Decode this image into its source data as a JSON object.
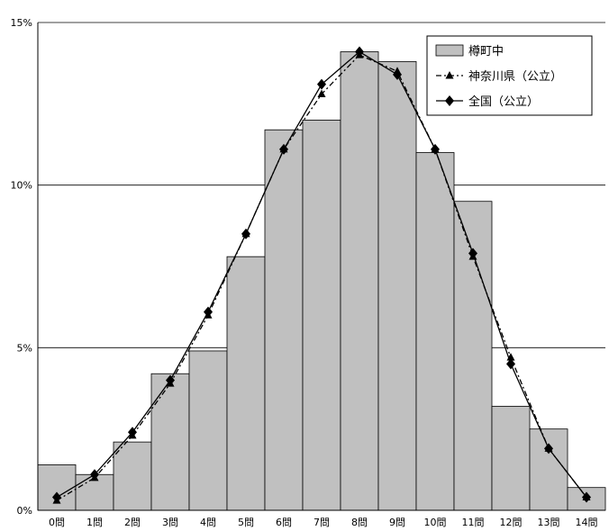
{
  "chart_data": {
    "type": "bar",
    "categories": [
      "0問",
      "1問",
      "2問",
      "3問",
      "4問",
      "5問",
      "6問",
      "7問",
      "8問",
      "9問",
      "10問",
      "11問",
      "12問",
      "13問",
      "14問"
    ],
    "ylim": [
      0,
      15
    ],
    "y_ticks": [
      "0%",
      "5%",
      "10%",
      "15%"
    ],
    "grid": true,
    "legend_position": "top-right",
    "series": [
      {
        "name": "樽町中",
        "kind": "bar",
        "values": [
          1.4,
          1.1,
          2.1,
          4.2,
          4.9,
          7.8,
          11.7,
          12.0,
          14.1,
          13.8,
          11.0,
          9.5,
          3.2,
          2.5,
          0.7
        ]
      },
      {
        "name": "神奈川県（公立）",
        "kind": "line",
        "marker": "triangle",
        "dash": "dashdot",
        "values": [
          0.3,
          1.0,
          2.3,
          3.9,
          6.0,
          8.5,
          11.1,
          12.8,
          14.0,
          13.5,
          11.1,
          7.8,
          4.7,
          1.9,
          0.4
        ]
      },
      {
        "name": "全国（公立）",
        "kind": "line",
        "marker": "diamond",
        "dash": "solid",
        "values": [
          0.4,
          1.1,
          2.4,
          4.0,
          6.1,
          8.5,
          11.1,
          13.1,
          14.1,
          13.4,
          11.1,
          7.9,
          4.5,
          1.9,
          0.4
        ]
      }
    ],
    "colors": {
      "bar_fill": "#c0c0c0",
      "bar_stroke": "#000000",
      "line": "#000000",
      "grid": "#000000"
    }
  }
}
